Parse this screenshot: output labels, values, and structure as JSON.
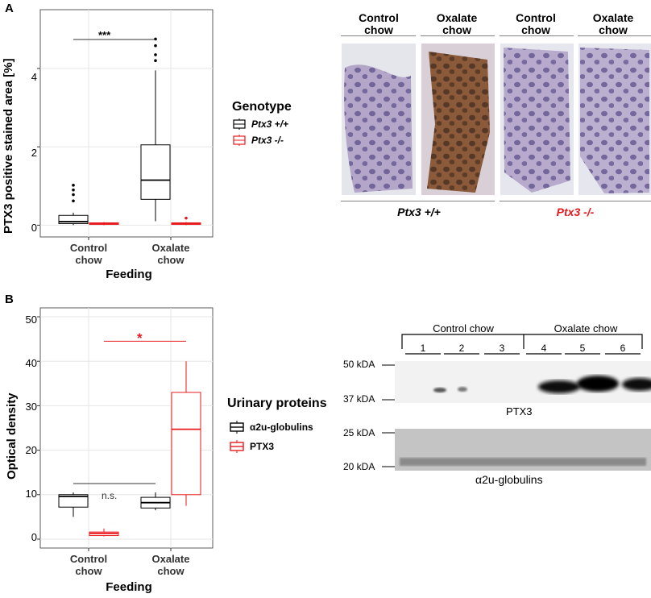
{
  "panel_a": {
    "label": "A",
    "significance": "***",
    "chart_data": {
      "type": "boxplot",
      "title": "",
      "xlabel": "Feeding",
      "ylabel": "PTX3 positive stained area [%]",
      "categories": [
        "Control chow",
        "Oxalate chow"
      ],
      "yticks": [
        "0",
        "2",
        "4"
      ],
      "ylim": [
        -0.3,
        5.5
      ],
      "grid": true,
      "legend_title": "Genotype",
      "series": [
        {
          "name": "Ptx3 +/+",
          "color": "#000000",
          "boxes": [
            {
              "min": 0.0,
              "q1": 0.04,
              "median": 0.09,
              "q3": 0.25,
              "max": 0.32,
              "outliers": [
                0.62,
                0.78,
                0.9,
                1.02
              ]
            },
            {
              "min": 0.1,
              "q1": 0.66,
              "median": 1.15,
              "q3": 2.05,
              "max": 3.95,
              "outliers": [
                4.2,
                4.35,
                4.58,
                4.75
              ]
            }
          ]
        },
        {
          "name": "Ptx3 -/-",
          "color": "#e8191c",
          "boxes": [
            {
              "min": 0.0,
              "q1": 0.02,
              "median": 0.04,
              "q3": 0.06,
              "max": 0.08,
              "outliers": []
            },
            {
              "min": 0.0,
              "q1": 0.02,
              "median": 0.04,
              "q3": 0.06,
              "max": 0.08,
              "outliers": [
                0.18
              ]
            }
          ]
        }
      ]
    },
    "micro": {
      "headers": [
        "Control\nchow",
        "Oxalate\nchow",
        "Control\nchow",
        "Oxalate\nchow"
      ],
      "genotypes": [
        "Ptx3 +/+",
        "Ptx3 -/-"
      ]
    }
  },
  "panel_b": {
    "label": "B",
    "sig_left": "n.s.",
    "sig_right": "*",
    "chart_data": {
      "type": "boxplot",
      "title": "",
      "xlabel": "Feeding",
      "ylabel": "Optical density",
      "categories": [
        "Control chow",
        "Oxalate chow"
      ],
      "yticks": [
        "0",
        "10",
        "20",
        "30",
        "40",
        "50"
      ],
      "ylim": [
        -2,
        52
      ],
      "grid": true,
      "legend_title": "Urinary proteins",
      "series": [
        {
          "name": "α2u-globulins",
          "color": "#000000",
          "boxes": [
            {
              "min": 5.0,
              "q1": 7.2,
              "median": 9.6,
              "q3": 10.0,
              "max": 10.5,
              "outliers": []
            },
            {
              "min": 6.5,
              "q1": 7.0,
              "median": 8.2,
              "q3": 9.4,
              "max": 10.5,
              "outliers": []
            }
          ]
        },
        {
          "name": "PTX3",
          "color": "#e8191c",
          "boxes": [
            {
              "min": 0.6,
              "q1": 0.8,
              "median": 1.3,
              "q3": 1.6,
              "max": 2.4,
              "outliers": []
            },
            {
              "min": 7.5,
              "q1": 10.0,
              "median": 24.7,
              "q3": 33.0,
              "max": 40.0,
              "outliers": []
            }
          ]
        }
      ]
    },
    "blot": {
      "group_labels": [
        "Control chow",
        "Oxalate chow"
      ],
      "lanes": [
        "1",
        "2",
        "3",
        "4",
        "5",
        "6"
      ],
      "ptx3_markers": [
        "50 kDA",
        "37 kDA"
      ],
      "ptx3_caption": "PTX3",
      "glob_markers": [
        "25 kDA",
        "20 kDA"
      ],
      "glob_caption": "α2u-globulins"
    }
  }
}
